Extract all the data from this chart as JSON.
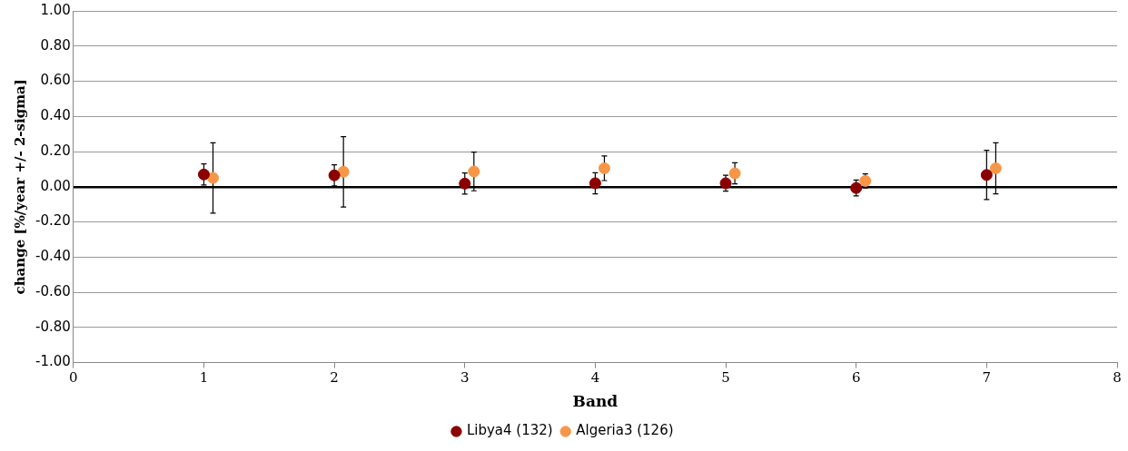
{
  "chart_data": {
    "type": "scatter",
    "xlabel": "Band",
    "ylabel": "change [%/year +/- 2-sigma]",
    "xlim": [
      0,
      8
    ],
    "xticks": [
      0,
      1,
      2,
      3,
      4,
      5,
      6,
      7,
      8
    ],
    "ylim": [
      -1,
      1
    ],
    "yticks": [
      {
        "value": -1,
        "label": "-1.00"
      },
      {
        "value": -0.8,
        "label": "-0.80"
      },
      {
        "value": -0.6,
        "label": "-0.60"
      },
      {
        "value": -0.4,
        "label": "-0.40"
      },
      {
        "value": -0.2,
        "label": "-0.20"
      },
      {
        "value": 0,
        "label": "0.00"
      },
      {
        "value": 0.2,
        "label": "0.20"
      },
      {
        "value": 0.4,
        "label": "0.40"
      },
      {
        "value": 0.6,
        "label": "0.60"
      },
      {
        "value": 0.8,
        "label": "0.80"
      },
      {
        "value": 1,
        "label": "1.00"
      }
    ],
    "grid": "y",
    "legend": "bottom",
    "marker": "circle",
    "series": [
      {
        "name": "Libya4 (132)",
        "color": "#8b0000",
        "x": [
          1,
          2,
          3,
          4,
          5,
          6,
          7
        ],
        "values": [
          0.07,
          0.065,
          0.018,
          0.02,
          0.02,
          -0.007,
          0.067
        ],
        "errors": [
          0.06,
          0.06,
          0.06,
          0.06,
          0.045,
          0.045,
          0.14
        ]
      },
      {
        "name": "Algeria3 (126)",
        "color": "#f79646",
        "x": [
          1.07,
          2.07,
          3.07,
          4.07,
          5.07,
          6.07,
          7.07
        ],
        "values": [
          0.05,
          0.085,
          0.087,
          0.105,
          0.076,
          0.033,
          0.105
        ],
        "errors": [
          0.2,
          0.2,
          0.11,
          0.07,
          0.06,
          0.04,
          0.145
        ]
      }
    ]
  }
}
